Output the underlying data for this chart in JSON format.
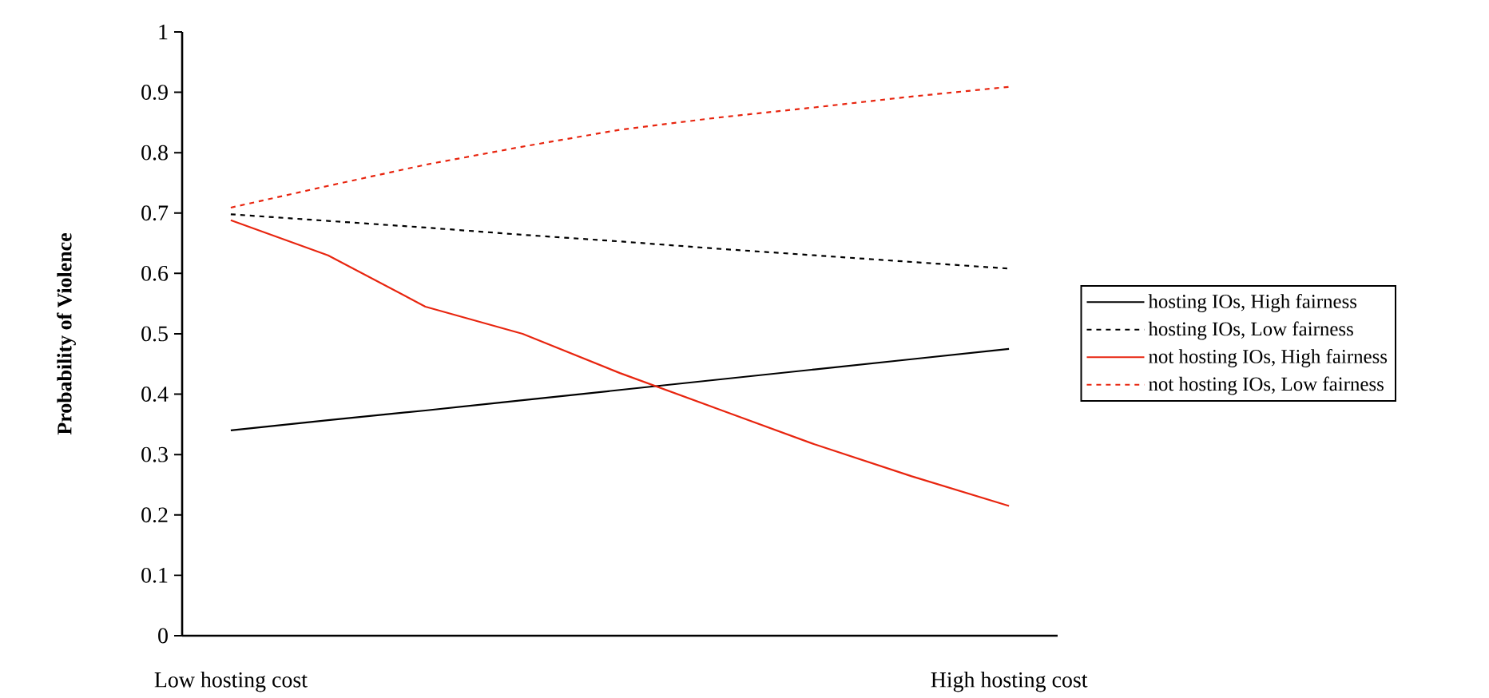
{
  "chart_data": {
    "type": "line",
    "ylabel": "Probability of Violence",
    "categories": [
      "Low hosting cost",
      null,
      null,
      null,
      null,
      null,
      null,
      null,
      "High hosting cost"
    ],
    "ylim": [
      0,
      1
    ],
    "yticks": [
      0,
      0.1,
      0.2,
      0.3,
      0.4,
      0.5,
      0.6,
      0.7,
      0.8,
      0.9,
      1
    ],
    "series": [
      {
        "name": "hosting IOs, High fairness",
        "color": "#000000",
        "line_style": "solid",
        "values": [
          0.34,
          0.357,
          0.373,
          0.39,
          0.407,
          0.424,
          0.441,
          0.458,
          0.475
        ]
      },
      {
        "name": "hosting IOs, Low fairness",
        "color": "#000000",
        "line_style": "dashed",
        "values": [
          0.698,
          0.687,
          0.676,
          0.664,
          0.653,
          0.641,
          0.63,
          0.619,
          0.608
        ]
      },
      {
        "name": "not hosting IOs, High fairness",
        "color": "#e8250f",
        "line_style": "solid",
        "values": [
          0.688,
          0.63,
          0.545,
          0.5,
          0.435,
          0.376,
          0.317,
          0.264,
          0.215
        ]
      },
      {
        "name": "not hosting IOs, Low fairness",
        "color": "#e8250f",
        "line_style": "dashed",
        "values": [
          0.709,
          0.745,
          0.78,
          0.81,
          0.838,
          0.858,
          0.875,
          0.893,
          0.909
        ]
      }
    ],
    "legend": "right",
    "marker": "none",
    "grid": false
  }
}
